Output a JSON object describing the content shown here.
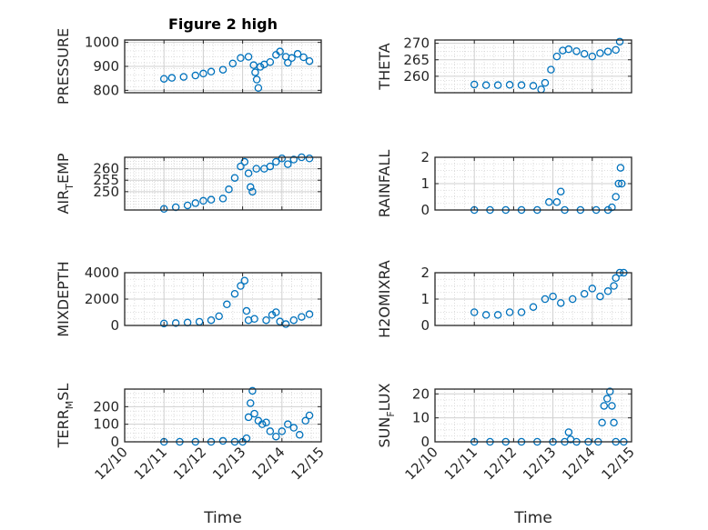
{
  "figure": {
    "title": "Figure 2 high",
    "marker_color": "#0072BD"
  },
  "chart_data": [
    {
      "type": "scatter",
      "ylabel": "PRESSURE",
      "ylabel_sub": "",
      "ylim": [
        790,
        1010
      ],
      "yticks": [
        800,
        900,
        1000
      ],
      "xlim": [
        0,
        5
      ],
      "grid": true,
      "points": [
        [
          1,
          848
        ],
        [
          1.2,
          852
        ],
        [
          1.5,
          856
        ],
        [
          1.8,
          862
        ],
        [
          2.0,
          870
        ],
        [
          2.2,
          878
        ],
        [
          2.5,
          886
        ],
        [
          2.75,
          912
        ],
        [
          2.95,
          935
        ],
        [
          3.15,
          940
        ],
        [
          3.28,
          905
        ],
        [
          3.32,
          875
        ],
        [
          3.36,
          845
        ],
        [
          3.4,
          810
        ],
        [
          3.45,
          898
        ],
        [
          3.55,
          908
        ],
        [
          3.7,
          918
        ],
        [
          3.85,
          948
        ],
        [
          3.95,
          962
        ],
        [
          4.1,
          940
        ],
        [
          4.15,
          915
        ],
        [
          4.25,
          935
        ],
        [
          4.4,
          952
        ],
        [
          4.55,
          938
        ],
        [
          4.7,
          922
        ]
      ]
    },
    {
      "type": "scatter",
      "ylabel": "THETA",
      "ylabel_sub": "",
      "ylim": [
        255,
        271
      ],
      "yticks": [
        260,
        265,
        270
      ],
      "xlim": [
        0,
        5
      ],
      "grid": true,
      "points": [
        [
          1,
          257.5
        ],
        [
          1.3,
          257.3
        ],
        [
          1.6,
          257.3
        ],
        [
          1.9,
          257.4
        ],
        [
          2.2,
          257.3
        ],
        [
          2.5,
          257.1
        ],
        [
          2.7,
          256
        ],
        [
          2.8,
          258
        ],
        [
          2.95,
          262
        ],
        [
          3.1,
          266
        ],
        [
          3.25,
          267.8
        ],
        [
          3.4,
          268.2
        ],
        [
          3.6,
          267.6
        ],
        [
          3.8,
          266.8
        ],
        [
          4.0,
          266
        ],
        [
          4.2,
          267
        ],
        [
          4.4,
          267.5
        ],
        [
          4.6,
          268
        ],
        [
          4.7,
          270.5
        ]
      ]
    },
    {
      "type": "scatter",
      "ylabel": "AIR",
      "ylabel_sub": "T",
      "ylabel_rest": "EMP",
      "ylim": [
        242,
        265
      ],
      "yticks": [
        250,
        255,
        260
      ],
      "xlim": [
        0,
        5
      ],
      "grid": true,
      "points": [
        [
          1,
          242.5
        ],
        [
          1.3,
          243.2
        ],
        [
          1.6,
          244
        ],
        [
          1.8,
          245
        ],
        [
          2.0,
          246
        ],
        [
          2.2,
          246.5
        ],
        [
          2.5,
          247
        ],
        [
          2.65,
          251
        ],
        [
          2.8,
          256
        ],
        [
          2.95,
          261
        ],
        [
          3.05,
          263
        ],
        [
          3.15,
          258
        ],
        [
          3.2,
          252
        ],
        [
          3.25,
          250
        ],
        [
          3.35,
          260
        ],
        [
          3.55,
          260
        ],
        [
          3.7,
          261
        ],
        [
          3.85,
          263
        ],
        [
          4.0,
          264.5
        ],
        [
          4.15,
          262
        ],
        [
          4.3,
          264
        ],
        [
          4.5,
          265
        ],
        [
          4.7,
          264.5
        ]
      ]
    },
    {
      "type": "scatter",
      "ylabel": "RAINFALL",
      "ylabel_sub": "",
      "ylim": [
        0,
        2
      ],
      "yticks": [
        0,
        1,
        2
      ],
      "xlim": [
        0,
        5
      ],
      "grid": true,
      "points": [
        [
          1,
          0
        ],
        [
          1.4,
          0
        ],
        [
          1.8,
          0
        ],
        [
          2.2,
          0
        ],
        [
          2.6,
          0
        ],
        [
          2.9,
          0.3
        ],
        [
          3.1,
          0.3
        ],
        [
          3.2,
          0.7
        ],
        [
          3.3,
          0
        ],
        [
          3.7,
          0
        ],
        [
          4.1,
          0
        ],
        [
          4.4,
          0
        ],
        [
          4.5,
          0.1
        ],
        [
          4.6,
          0.5
        ],
        [
          4.67,
          1.0
        ],
        [
          4.72,
          1.6
        ],
        [
          4.75,
          1.0
        ]
      ]
    },
    {
      "type": "scatter",
      "ylabel": "MIXDEPTH",
      "ylabel_sub": "",
      "ylim": [
        0,
        4000
      ],
      "yticks": [
        0,
        2000,
        4000
      ],
      "xlim": [
        0,
        5
      ],
      "grid": true,
      "points": [
        [
          1,
          150
        ],
        [
          1.3,
          180
        ],
        [
          1.6,
          220
        ],
        [
          1.9,
          280
        ],
        [
          2.2,
          400
        ],
        [
          2.4,
          700
        ],
        [
          2.6,
          1600
        ],
        [
          2.8,
          2400
        ],
        [
          2.95,
          3000
        ],
        [
          3.05,
          3400
        ],
        [
          3.1,
          1100
        ],
        [
          3.15,
          400
        ],
        [
          3.3,
          500
        ],
        [
          3.6,
          400
        ],
        [
          3.75,
          800
        ],
        [
          3.85,
          1000
        ],
        [
          3.95,
          300
        ],
        [
          4.1,
          100
        ],
        [
          4.3,
          400
        ],
        [
          4.5,
          650
        ],
        [
          4.7,
          850
        ]
      ]
    },
    {
      "type": "scatter",
      "ylabel": "H2OMIXRA",
      "ylabel_sub": "",
      "ylim": [
        0,
        2
      ],
      "yticks": [
        0,
        1,
        2
      ],
      "xlim": [
        0,
        5
      ],
      "grid": true,
      "points": [
        [
          1,
          0.5
        ],
        [
          1.3,
          0.4
        ],
        [
          1.6,
          0.4
        ],
        [
          1.9,
          0.5
        ],
        [
          2.2,
          0.5
        ],
        [
          2.5,
          0.7
        ],
        [
          2.8,
          1.0
        ],
        [
          3.0,
          1.1
        ],
        [
          3.2,
          0.85
        ],
        [
          3.5,
          1.0
        ],
        [
          3.8,
          1.2
        ],
        [
          4.0,
          1.4
        ],
        [
          4.2,
          1.1
        ],
        [
          4.4,
          1.3
        ],
        [
          4.55,
          1.5
        ],
        [
          4.6,
          1.8
        ],
        [
          4.7,
          2.0
        ],
        [
          4.8,
          2.0
        ]
      ]
    },
    {
      "type": "scatter",
      "ylabel": "TERR",
      "ylabel_sub": "M",
      "ylabel_rest": "SL",
      "ylim": [
        0,
        300
      ],
      "yticks": [
        0,
        100,
        200
      ],
      "xlim": [
        0,
        5
      ],
      "grid": true,
      "points": [
        [
          1,
          0
        ],
        [
          1.4,
          0
        ],
        [
          1.8,
          0
        ],
        [
          2.2,
          0
        ],
        [
          2.5,
          5
        ],
        [
          2.8,
          0
        ],
        [
          3.0,
          0
        ],
        [
          3.1,
          20
        ],
        [
          3.15,
          140
        ],
        [
          3.2,
          220
        ],
        [
          3.25,
          290
        ],
        [
          3.3,
          160
        ],
        [
          3.4,
          120
        ],
        [
          3.5,
          100
        ],
        [
          3.6,
          110
        ],
        [
          3.7,
          60
        ],
        [
          3.85,
          30
        ],
        [
          4.0,
          60
        ],
        [
          4.15,
          100
        ],
        [
          4.3,
          80
        ],
        [
          4.45,
          40
        ],
        [
          4.6,
          120
        ],
        [
          4.7,
          150
        ]
      ]
    },
    {
      "type": "scatter",
      "ylabel": "SUN",
      "ylabel_sub": "F",
      "ylabel_rest": "LUX",
      "ylim": [
        0,
        22
      ],
      "yticks": [
        0,
        10,
        20
      ],
      "xlim": [
        0,
        5
      ],
      "grid": true,
      "points": [
        [
          1,
          0
        ],
        [
          1.4,
          0
        ],
        [
          1.8,
          0
        ],
        [
          2.2,
          0
        ],
        [
          2.6,
          0
        ],
        [
          3.0,
          0
        ],
        [
          3.3,
          0
        ],
        [
          3.4,
          4
        ],
        [
          3.45,
          1
        ],
        [
          3.6,
          0
        ],
        [
          3.9,
          0
        ],
        [
          4.15,
          0
        ],
        [
          4.25,
          8
        ],
        [
          4.3,
          15
        ],
        [
          4.38,
          18
        ],
        [
          4.45,
          21
        ],
        [
          4.5,
          15
        ],
        [
          4.55,
          8
        ],
        [
          4.6,
          0
        ],
        [
          4.8,
          0
        ]
      ]
    }
  ],
  "x_axis": {
    "ticks": [
      {
        "value": 0,
        "label": "12/10"
      },
      {
        "value": 1,
        "label": "12/11"
      },
      {
        "value": 2,
        "label": "12/12"
      },
      {
        "value": 3,
        "label": "12/13"
      },
      {
        "value": 4,
        "label": "12/14"
      },
      {
        "value": 5,
        "label": "12/15"
      }
    ],
    "label": "Time"
  }
}
